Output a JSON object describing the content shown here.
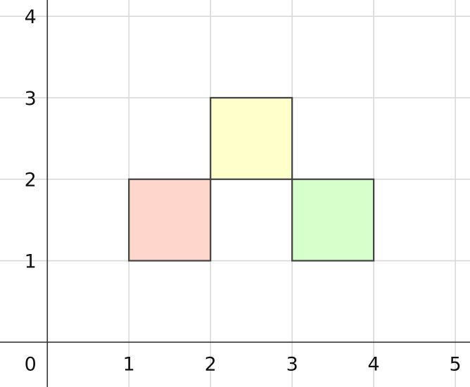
{
  "chart_data": {
    "type": "diagram",
    "x_ticks": [
      "0",
      "1",
      "2",
      "3",
      "4",
      "5"
    ],
    "y_ticks": [
      "1",
      "2",
      "3",
      "4"
    ],
    "xlim": [
      -0.58,
      5.18
    ],
    "ylim": [
      -0.55,
      4.2
    ],
    "grid": true,
    "squares": [
      {
        "name": "red-square",
        "x": [
          1,
          2
        ],
        "y": [
          1,
          2
        ],
        "color": "#ffd6cc"
      },
      {
        "name": "yellow-square",
        "x": [
          2,
          3
        ],
        "y": [
          2,
          3
        ],
        "color": "#ffffcc"
      },
      {
        "name": "green-square",
        "x": [
          3,
          4
        ],
        "y": [
          1,
          2
        ],
        "color": "#d6ffcc"
      }
    ]
  }
}
